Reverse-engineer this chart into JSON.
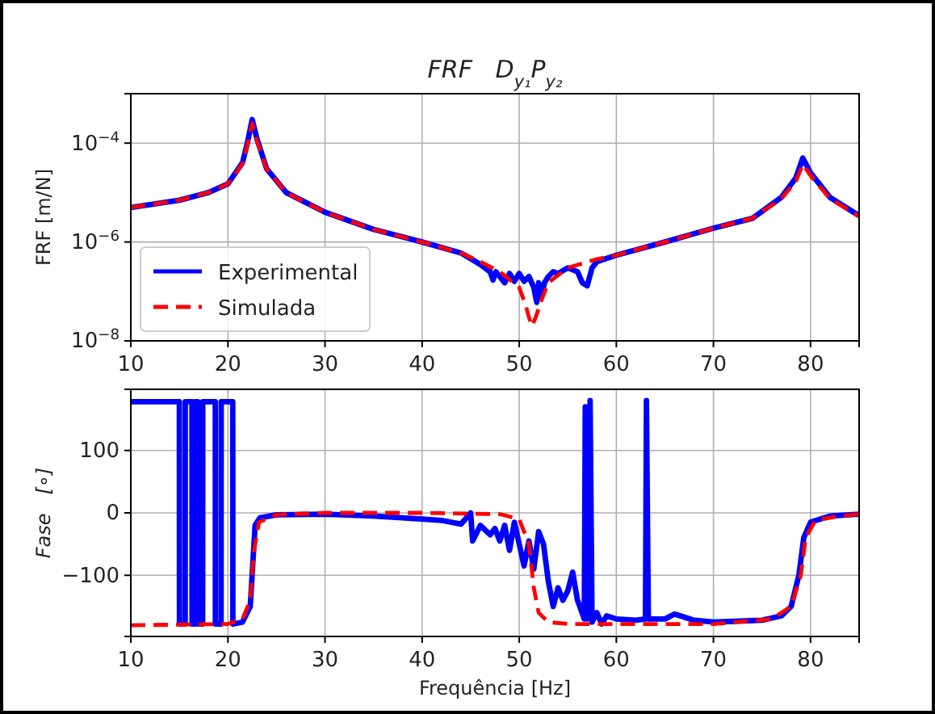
{
  "chart_data": [
    {
      "type": "line",
      "title": "FRF   D$_{y₁}$P$_{y₂}$",
      "ylabel": "FRF [m/N]",
      "log": "y",
      "grid": true,
      "legend": "bottom left",
      "xlim": [
        10,
        85
      ],
      "xticks": [
        10,
        20,
        30,
        40,
        50,
        60,
        70,
        80
      ],
      "ylim": [
        1e-08,
        0.001
      ],
      "yticks": [
        {
          "value": 1e-08,
          "label": "10$^{−8}$"
        },
        {
          "value": 1e-06,
          "label": "10$^{−6}$"
        },
        {
          "value": 0.0001,
          "label": "10$^{−4}$"
        }
      ],
      "series": [
        {
          "name": "Experimental",
          "color": "#0000ff",
          "line_style": "solid",
          "x": [
            10,
            15,
            18,
            20,
            21.5,
            22,
            22.5,
            23,
            24,
            26,
            30,
            35,
            40,
            44,
            46,
            47,
            47.3,
            47.6,
            48,
            48.5,
            49,
            49.5,
            50,
            50.5,
            51,
            51.5,
            51.8,
            52,
            52.3,
            52.6,
            53,
            53.5,
            54,
            55,
            56,
            56.5,
            57,
            57.5,
            58,
            60,
            65,
            70,
            74,
            77,
            78.5,
            79.2,
            80,
            82,
            85
          ],
          "values": [
            5e-06,
            7e-06,
            1e-05,
            1.5e-05,
            4e-05,
            0.0001,
            0.0003,
            0.00012,
            3e-05,
            1e-05,
            4e-06,
            1.8e-06,
            1e-06,
            6e-07,
            3.5e-07,
            2.5e-07,
            1.7e-07,
            2.5e-07,
            2e-07,
            1.5e-07,
            2.3e-07,
            1.6e-07,
            2.3e-07,
            1.6e-07,
            2e-07,
            1.2e-07,
            6e-08,
            1.5e-07,
            8e-08,
            1.5e-07,
            2e-07,
            2.5e-07,
            2.3e-07,
            3e-07,
            2.5e-07,
            1.5e-07,
            1.3e-07,
            3e-07,
            4e-07,
            5.4e-07,
            1e-06,
            1.9e-06,
            3e-06,
            8e-06,
            2e-05,
            5e-05,
            2.5e-05,
            8e-06,
            3.4e-06
          ]
        },
        {
          "name": "Simulada",
          "color": "#ff0000",
          "line_style": "dashed",
          "x": [
            10,
            15,
            18,
            20,
            21.5,
            22,
            22.5,
            23,
            24,
            26,
            30,
            35,
            40,
            44,
            46,
            48,
            50,
            50.7,
            51,
            51.3,
            51.7,
            52.2,
            53,
            55,
            58,
            60,
            65,
            70,
            74,
            77,
            78.5,
            79.2,
            80,
            82,
            85
          ],
          "values": [
            5e-06,
            7e-06,
            1e-05,
            1.5e-05,
            3.8e-05,
            9e-05,
            0.00025,
            0.00011,
            3e-05,
            1e-05,
            4e-06,
            1.8e-06,
            1e-06,
            6e-07,
            4e-07,
            2.5e-07,
            1.2e-07,
            5e-08,
            3e-08,
            2e-08,
            3e-08,
            6e-08,
            1.5e-07,
            3e-07,
            4.5e-07,
            5.4e-07,
            1e-06,
            1.9e-06,
            3e-06,
            7.5e-06,
            1.7e-05,
            3.7e-05,
            2.2e-05,
            7.5e-06,
            3.3e-06
          ]
        }
      ]
    },
    {
      "type": "line",
      "xlabel": "Frequência [Hz]",
      "ylabel": "Fase   [∘]",
      "grid": true,
      "xlim": [
        10,
        85
      ],
      "xticks": [
        10,
        20,
        30,
        40,
        50,
        60,
        70,
        80
      ],
      "ylim": [
        -198,
        198
      ],
      "yticks": [
        {
          "value": -100,
          "label": "−100"
        },
        0,
        100
      ],
      "series": [
        {
          "color": "#0000ff",
          "line_style": "solid",
          "x": [
            10,
            12,
            15,
            15.01,
            15.6,
            15.61,
            16.3,
            16.31,
            16.6,
            16.61,
            16.9,
            16.91,
            17.4,
            17.41,
            18.7,
            18.71,
            19.3,
            19.31,
            20.5,
            20.51,
            21.5,
            22.3,
            22.8,
            23.3,
            25,
            30,
            35,
            40,
            42,
            44,
            45,
            45.2,
            46,
            47,
            47.5,
            48,
            48.5,
            49,
            49.5,
            50,
            50.5,
            51,
            51.5,
            52,
            52.5,
            53,
            53.5,
            54,
            54.5,
            55,
            55.5,
            56,
            56.7,
            56.8,
            57,
            57.3,
            57.5,
            58,
            58.5,
            59,
            60,
            62,
            63,
            63.1,
            63.3,
            65,
            66,
            68,
            70,
            75,
            77,
            78,
            78.8,
            79.3,
            80,
            82,
            85
          ],
          "values": [
            178,
            178,
            178,
            -178,
            -178,
            178,
            178,
            -178,
            -178,
            178,
            178,
            -178,
            -178,
            178,
            178,
            -178,
            -178,
            178,
            178,
            -178,
            -175,
            -150,
            -20,
            -8,
            -3,
            -2,
            -5,
            -10,
            -12,
            -18,
            0,
            -45,
            -20,
            -35,
            -25,
            -45,
            -20,
            -60,
            -15,
            -50,
            -85,
            -45,
            -90,
            -30,
            -50,
            -110,
            -150,
            -120,
            -140,
            -125,
            -95,
            -140,
            -170,
            170,
            -170,
            180,
            -175,
            -160,
            -178,
            -165,
            -170,
            -172,
            -170,
            180,
            -170,
            -170,
            -162,
            -172,
            -175,
            -172,
            -165,
            -150,
            -100,
            -40,
            -15,
            -5,
            -2
          ]
        },
        {
          "color": "#ff0000",
          "line_style": "dashed",
          "x": [
            10,
            20,
            21.5,
            22.3,
            22.7,
            23.2,
            25,
            30,
            40,
            48,
            50,
            51,
            51.5,
            52,
            53,
            55,
            70,
            76,
            78,
            79,
            79.5,
            80.5,
            83,
            85
          ],
          "values": [
            -180,
            -178,
            -170,
            -140,
            -60,
            -15,
            -3,
            0,
            0,
            -2,
            -10,
            -50,
            -120,
            -160,
            -175,
            -178,
            -178,
            -170,
            -150,
            -100,
            -40,
            -12,
            -5,
            -2
          ]
        }
      ]
    }
  ]
}
